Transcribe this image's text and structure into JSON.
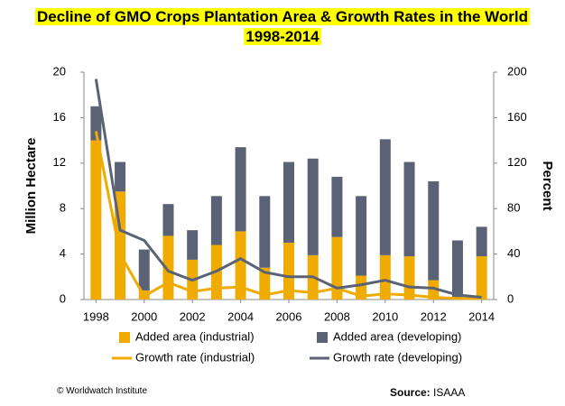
{
  "chart_data": {
    "type": "bar",
    "title": "Decline of GMO Crops Plantation Area & Growth Rates in the World",
    "subtitle": "1998-2014",
    "ylabel": "Million Hectare",
    "y2label": "Percent",
    "x": [
      1998,
      1999,
      2000,
      2001,
      2002,
      2003,
      2004,
      2005,
      2006,
      2007,
      2008,
      2009,
      2010,
      2011,
      2012,
      2013,
      2014
    ],
    "xlim": [
      1997.5,
      2014.5
    ],
    "xticks": [
      1998,
      2000,
      2002,
      2004,
      2006,
      2008,
      2010,
      2012,
      2014
    ],
    "ylim": [
      0,
      20
    ],
    "yticks": [
      0,
      4,
      8,
      12,
      16,
      20
    ],
    "y2lim": [
      0,
      200
    ],
    "y2ticks": [
      0,
      40,
      80,
      120,
      160,
      200
    ],
    "stacked": true,
    "grid": false,
    "series": [
      {
        "name": "Added area (industrial)",
        "type": "bar",
        "color": "#f0ab00",
        "values": [
          14.0,
          9.5,
          0.8,
          5.6,
          3.5,
          4.8,
          6.0,
          2.8,
          5.0,
          3.9,
          5.5,
          2.1,
          3.9,
          3.8,
          1.7,
          0.2,
          3.8
        ]
      },
      {
        "name": "Added area (developing)",
        "type": "bar",
        "color": "#5b6275",
        "values": [
          3.0,
          2.6,
          3.6,
          2.8,
          2.6,
          4.3,
          7.4,
          6.3,
          7.1,
          8.5,
          5.3,
          7.0,
          10.2,
          8.3,
          8.7,
          5.0,
          2.6
        ]
      },
      {
        "name": "Growth rate (industrial)",
        "type": "line",
        "axis": "y2",
        "color": "#f0ab00",
        "values": [
          148,
          40,
          3,
          15,
          7,
          10,
          11,
          4,
          8,
          6,
          10,
          3,
          5,
          4,
          2,
          1,
          1
        ]
      },
      {
        "name": "Growth rate (developing)",
        "type": "line",
        "axis": "y2",
        "color": "#5b6275",
        "values": [
          194,
          61,
          52,
          25,
          17,
          25,
          36,
          24,
          20,
          20,
          10,
          13,
          17,
          11,
          10,
          4,
          2
        ]
      }
    ],
    "credit": "© Worldwatch  Institute",
    "source_label": "Source:",
    "source": "ISAAA"
  }
}
